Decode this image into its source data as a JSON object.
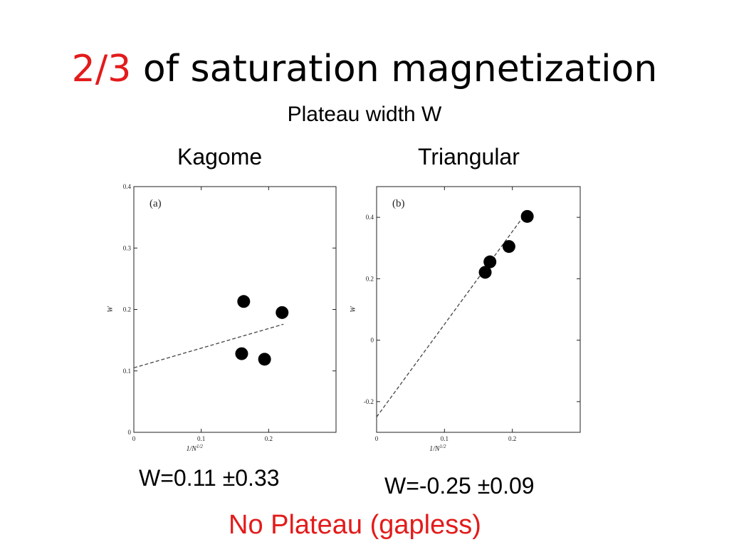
{
  "slide": {
    "title_highlight": "2/3",
    "title_rest": " of saturation magnetization",
    "subtitle": "Plateau width W",
    "conclusion": "No Plateau (gapless)",
    "accent_color": "#e31b1b"
  },
  "chart_data": [
    {
      "type": "scatter",
      "heading": "Kagome",
      "panel_label": "(a)",
      "xlabel": "1/N",
      "xlabel_sup": "1/2",
      "ylabel": "W",
      "xlim": [
        0,
        0.3
      ],
      "ylim": [
        0,
        0.4
      ],
      "xticks": [
        0,
        0.1,
        0.2
      ],
      "yticks": [
        0,
        0.1,
        0.2,
        0.3,
        0.4
      ],
      "xtick_labels": [
        "0",
        "0.1",
        "0.2"
      ],
      "ytick_labels": [
        "0",
        "0.1",
        "0.2",
        "0.3",
        "0.4"
      ],
      "points": [
        {
          "x": 0.163,
          "y": 0.213
        },
        {
          "x": 0.22,
          "y": 0.195
        },
        {
          "x": 0.16,
          "y": 0.128
        },
        {
          "x": 0.194,
          "y": 0.119
        }
      ],
      "fit_line": {
        "x": [
          0,
          0.222
        ],
        "y": [
          0.105,
          0.176
        ]
      },
      "result": "W=0.11 ±0.33"
    },
    {
      "type": "scatter",
      "heading": "Triangular",
      "panel_label": "(b)",
      "xlabel": "1/N",
      "xlabel_sup": "1/2",
      "ylabel": "W",
      "xlim": [
        0,
        0.3
      ],
      "ylim": [
        -0.3,
        0.5
      ],
      "xticks": [
        0,
        0.1,
        0.2
      ],
      "yticks": [
        -0.2,
        0,
        0.2,
        0.4
      ],
      "xtick_labels": [
        "0",
        "0.1",
        "0.2"
      ],
      "ytick_labels": [
        "-0.2",
        "0",
        "0.2",
        "0.4"
      ],
      "points": [
        {
          "x": 0.222,
          "y": 0.403
        },
        {
          "x": 0.195,
          "y": 0.305
        },
        {
          "x": 0.167,
          "y": 0.255
        },
        {
          "x": 0.16,
          "y": 0.221
        }
      ],
      "fit_line": {
        "x": [
          0,
          0.222
        ],
        "y": [
          -0.25,
          0.42
        ]
      },
      "result": "W=-0.25 ±0.09"
    }
  ]
}
